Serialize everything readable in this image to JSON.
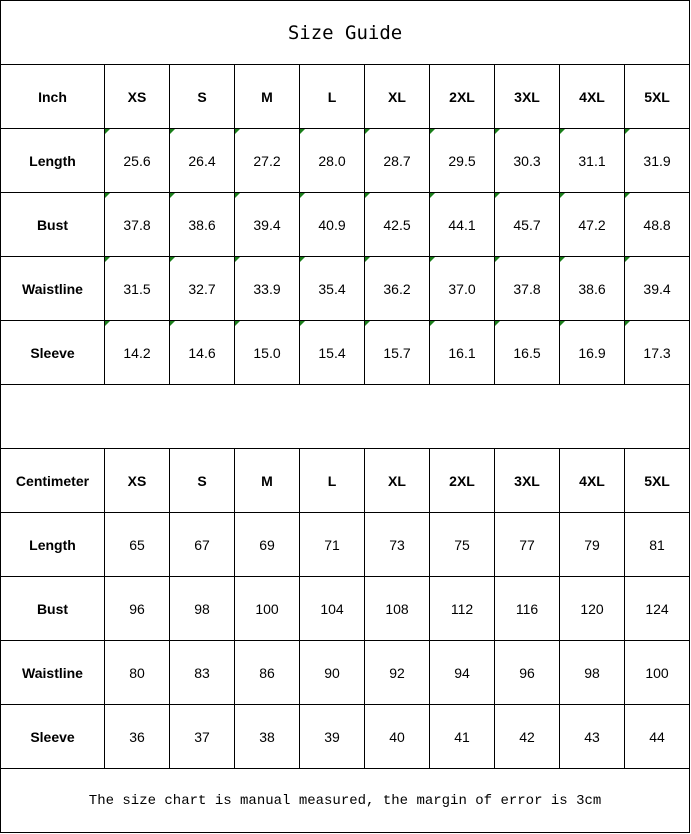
{
  "title": "Size Guide",
  "sizes": [
    "XS",
    "S",
    "M",
    "L",
    "XL",
    "2XL",
    "3XL",
    "4XL",
    "5XL"
  ],
  "inch_table": {
    "unit_label": "Inch",
    "rows": [
      {
        "label": "Length",
        "values": [
          "25.6",
          "26.4",
          "27.2",
          "28.0",
          "28.7",
          "29.5",
          "30.3",
          "31.1",
          "31.9"
        ]
      },
      {
        "label": "Bust",
        "values": [
          "37.8",
          "38.6",
          "39.4",
          "40.9",
          "42.5",
          "44.1",
          "45.7",
          "47.2",
          "48.8"
        ]
      },
      {
        "label": "Waistline",
        "values": [
          "31.5",
          "32.7",
          "33.9",
          "35.4",
          "36.2",
          "37.0",
          "37.8",
          "38.6",
          "39.4"
        ]
      },
      {
        "label": "Sleeve",
        "values": [
          "14.2",
          "14.6",
          "15.0",
          "15.4",
          "15.7",
          "16.1",
          "16.5",
          "16.9",
          "17.3"
        ]
      }
    ]
  },
  "cm_table": {
    "unit_label": "Centimeter",
    "rows": [
      {
        "label": "Length",
        "values": [
          "65",
          "67",
          "69",
          "71",
          "73",
          "75",
          "77",
          "79",
          "81"
        ]
      },
      {
        "label": "Bust",
        "values": [
          "96",
          "98",
          "100",
          "104",
          "108",
          "112",
          "116",
          "120",
          "124"
        ]
      },
      {
        "label": "Waistline",
        "values": [
          "80",
          "83",
          "86",
          "90",
          "92",
          "94",
          "96",
          "98",
          "100"
        ]
      },
      {
        "label": "Sleeve",
        "values": [
          "36",
          "37",
          "38",
          "39",
          "40",
          "41",
          "42",
          "43",
          "44"
        ]
      }
    ]
  },
  "footer": "The size chart is manual measured, the margin of error is 3cm",
  "colors": {
    "text_marker": "#1a7f1a",
    "border": "#000000"
  }
}
